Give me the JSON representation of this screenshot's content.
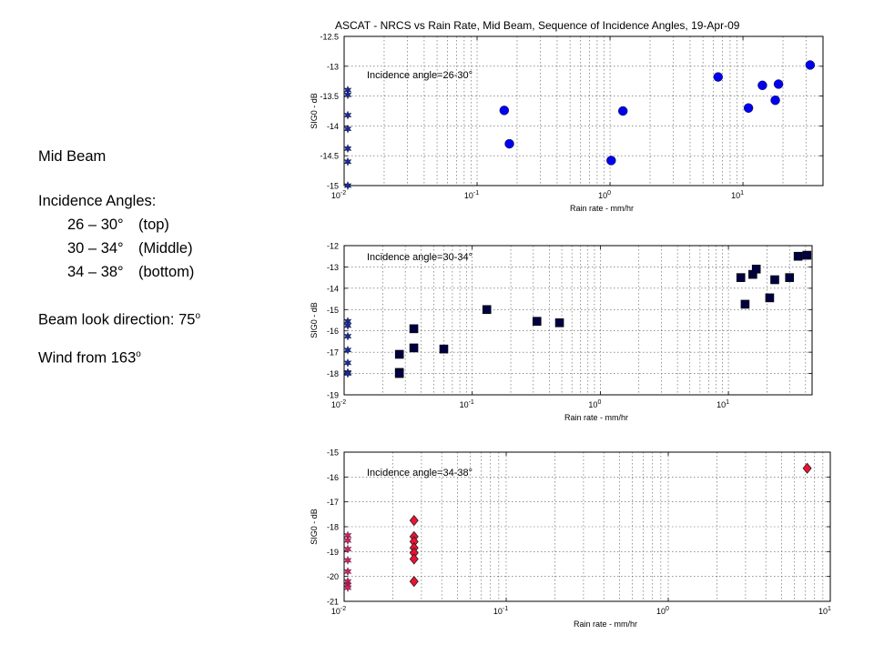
{
  "side_panel": {
    "heading": "Mid Beam",
    "angles_label": "Incidence Angles:",
    "angle_rows": [
      {
        "range": "26 – 30°",
        "desc": "(top)"
      },
      {
        "range": "30 – 34°",
        "desc": "(Middle)"
      },
      {
        "range": "34 – 38°",
        "desc": "(bottom)"
      }
    ],
    "look_dir_label": "Beam look direction: 75",
    "look_dir_unit": "o",
    "wind_label": "Wind from 163",
    "wind_unit": "o"
  },
  "chart_data": [
    {
      "type": "scatter",
      "title": "ASCAT - NRCS vs Rain Rate, Mid Beam, Sequence of Incidence Angles, 19-Apr-09",
      "annotation": "Incidence angle=26-30°",
      "xlabel": "Rain rate - mm/hr",
      "ylabel": "SIG0 - dB",
      "xscale": "log",
      "xlim": [
        0.01,
        40
      ],
      "ylim": [
        -15,
        -12.5
      ],
      "xticks": [
        0.01,
        0.1,
        1,
        10
      ],
      "xtick_labels": [
        "10-2",
        "10-1",
        "100",
        "101"
      ],
      "yticks": [
        -12.5,
        -13,
        -13.5,
        -14,
        -14.5,
        -15
      ],
      "ytick_labels": [
        "-12.5",
        "-13",
        "-13.5",
        "-14",
        "-14.5",
        "-15"
      ],
      "grid": true,
      "marker": "circle",
      "color": "#0000ee",
      "points": [
        [
          0.16,
          -13.74
        ],
        [
          0.175,
          -14.3
        ],
        [
          1.02,
          -14.58
        ],
        [
          1.25,
          -13.75
        ],
        [
          6.5,
          -13.18
        ],
        [
          11,
          -13.7
        ],
        [
          14,
          -13.32
        ],
        [
          17.5,
          -13.57
        ],
        [
          18.5,
          -13.3
        ],
        [
          32,
          -12.98
        ]
      ],
      "zero_rain_points": [
        -13.4,
        -13.48,
        -13.82,
        -14.05,
        -14.38,
        -14.6,
        -15.0
      ]
    },
    {
      "type": "scatter",
      "annotation": "Incidence angle=30-34°",
      "xlabel": "Rain rate - mm/hr",
      "ylabel": "SIG0 - dB",
      "xscale": "log",
      "xlim": [
        0.01,
        45
      ],
      "ylim": [
        -19,
        -12
      ],
      "xticks": [
        0.01,
        0.1,
        1,
        10
      ],
      "xtick_labels": [
        "10-2",
        "10-1",
        "100",
        "101"
      ],
      "yticks": [
        -12,
        -13,
        -14,
        -15,
        -16,
        -17,
        -18,
        -19
      ],
      "ytick_labels": [
        "-12",
        "-13",
        "-14",
        "-15",
        "-16",
        "-17",
        "-18",
        "-19"
      ],
      "grid": true,
      "marker": "square",
      "color": "#000040",
      "points": [
        [
          0.027,
          -17.1
        ],
        [
          0.027,
          -17.95
        ],
        [
          0.027,
          -18.0
        ],
        [
          0.035,
          -15.9
        ],
        [
          0.035,
          -16.8
        ],
        [
          0.06,
          -16.85
        ],
        [
          0.13,
          -15.0
        ],
        [
          0.32,
          -15.55
        ],
        [
          0.48,
          -15.62
        ],
        [
          12.5,
          -13.5
        ],
        [
          13.5,
          -14.75
        ],
        [
          15.5,
          -13.35
        ],
        [
          16.5,
          -13.1
        ],
        [
          21,
          -14.45
        ],
        [
          23,
          -13.6
        ],
        [
          30,
          -13.5
        ],
        [
          35,
          -12.5
        ],
        [
          41,
          -12.45
        ]
      ],
      "zero_rain_points": [
        -15.55,
        -15.75,
        -16.25,
        -16.9,
        -17.5,
        -17.95,
        -18.0
      ]
    },
    {
      "type": "scatter",
      "annotation": "Incidence angle=34-38°",
      "xlabel": "Rain rate - mm/hr",
      "ylabel": "SIG0 - dB",
      "xscale": "log",
      "xlim": [
        0.01,
        10
      ],
      "ylim": [
        -21,
        -15
      ],
      "xticks": [
        0.01,
        0.1,
        1,
        10
      ],
      "xtick_labels": [
        "10-2",
        "10-1",
        "100",
        "101"
      ],
      "yticks": [
        -15,
        -16,
        -17,
        -18,
        -19,
        -20,
        -21
      ],
      "ytick_labels": [
        "-15",
        "-16",
        "-17",
        "-18",
        "-19",
        "-20",
        "-21"
      ],
      "grid": true,
      "marker": "diamond",
      "color": "#ee1133",
      "points": [
        [
          0.027,
          -17.75
        ],
        [
          0.027,
          -18.4
        ],
        [
          0.027,
          -18.6
        ],
        [
          0.027,
          -18.85
        ],
        [
          0.027,
          -19.05
        ],
        [
          0.027,
          -19.3
        ],
        [
          0.027,
          -20.2
        ],
        [
          7.2,
          -15.65
        ]
      ],
      "zero_rain_points": [
        -18.35,
        -18.55,
        -18.9,
        -19.35,
        -19.8,
        -20.2,
        -20.35,
        -20.45
      ]
    }
  ]
}
